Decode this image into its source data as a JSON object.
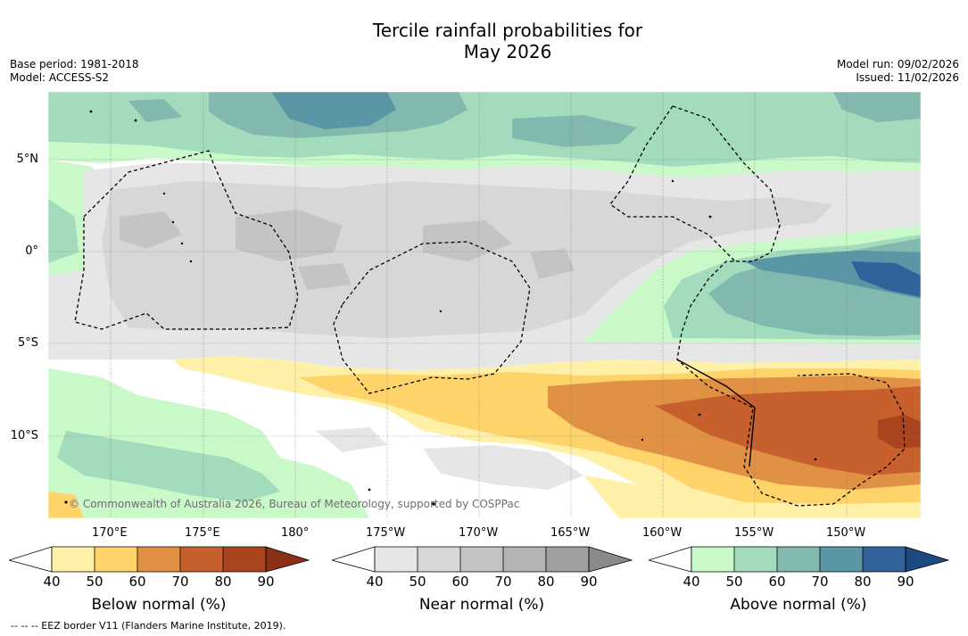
{
  "title": {
    "line1": "Tercile rainfall probabilities for",
    "line2": "May 2026"
  },
  "meta_left": {
    "base_period": "Base period: 1981-2018",
    "model": "Model: ACCESS-S2"
  },
  "meta_right": {
    "model_run": "Model run: 09/02/2026",
    "issued": "Issued: 11/02/2026"
  },
  "map": {
    "lat_labels": [
      "5°N",
      "0°",
      "5°S",
      "10°S"
    ],
    "lon_labels": [
      "170°E",
      "175°E",
      "180°",
      "175°W",
      "170°W",
      "165°W",
      "160°W",
      "155°W",
      "150°W"
    ],
    "copyright": "© Commonwealth of Australia 2026, Bureau of Meteorology, supported by COSPPac"
  },
  "colorbars": [
    {
      "label": "Below normal (%)",
      "ticks": [
        "40",
        "50",
        "60",
        "70",
        "80",
        "90"
      ],
      "colors": [
        "#fff0a8",
        "#fdd36a",
        "#e09143",
        "#c8602e",
        "#a9441f"
      ],
      "extend_color": "#8c2f18"
    },
    {
      "label": "Near normal (%)",
      "ticks": [
        "40",
        "50",
        "60",
        "70",
        "80",
        "90"
      ],
      "colors": [
        "#e6e6e6",
        "#d7d7d7",
        "#c4c4c4",
        "#b3b3b3",
        "#a0a0a0"
      ],
      "extend_color": "#8a8a8a"
    },
    {
      "label": "Above normal (%)",
      "ticks": [
        "40",
        "50",
        "60",
        "70",
        "80",
        "90"
      ],
      "colors": [
        "#c9f9c9",
        "#a3dbbd",
        "#82b9ae",
        "#5a96a5",
        "#31639a"
      ],
      "extend_color": "#1e4a84"
    }
  ],
  "footnote": "--  --  -- EEZ border V11 (Flanders Marine Institute, 2019)."
}
